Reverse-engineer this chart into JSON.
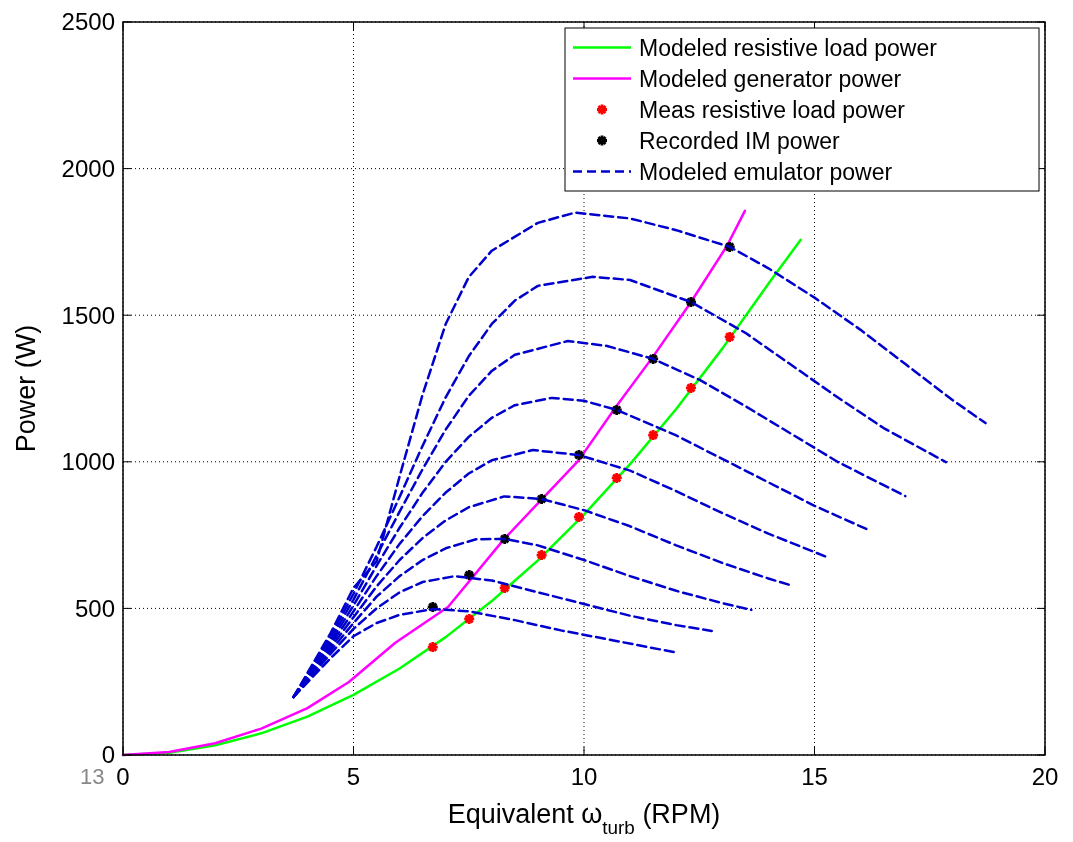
{
  "chart_data": {
    "type": "line",
    "xlabel": "Equivalent ω$_{turb}$ (RPM)",
    "ylabel": "Power (W)",
    "xlim": [
      0,
      20
    ],
    "ylim": [
      0,
      2500
    ],
    "xticks": [
      0,
      5,
      10,
      15,
      20
    ],
    "yticks": [
      0,
      500,
      1000,
      1500,
      2000,
      2500
    ],
    "grid": true,
    "legend": "top right",
    "annotations": [
      "13"
    ],
    "series": [
      {
        "name": "Modeled resistive load power",
        "color": "#00ff00",
        "line_style": "solid",
        "x": [
          0,
          1,
          2,
          3,
          4,
          5,
          6,
          7,
          8,
          9,
          10,
          11,
          12,
          13,
          14,
          14.7
        ],
        "values": [
          0,
          8,
          33,
          74,
          131,
          205,
          295,
          402,
          525,
          664,
          820,
          992,
          1180,
          1386,
          1607,
          1757
        ]
      },
      {
        "name": "Modeled generator power",
        "color": "#ff00ff",
        "line_style": "solid",
        "x": [
          0,
          1,
          2,
          3,
          4,
          4.9,
          5.9,
          7.05,
          8.27,
          9.88,
          10.69,
          11.49,
          12.3,
          13.1,
          13.49
        ],
        "values": [
          0,
          10,
          40,
          90,
          160,
          249,
          382,
          505,
          737,
          1004,
          1187,
          1357,
          1540,
          1736,
          1856
        ]
      },
      {
        "name": "Meas resistive load power",
        "type": "scatter",
        "marker": "cross",
        "color": "#ff0000",
        "x": [
          6.72,
          7.51,
          8.28,
          9.08,
          9.89,
          10.71,
          11.5,
          12.32,
          13.16
        ],
        "values": [
          368,
          464,
          570,
          682,
          812,
          945,
          1091,
          1252,
          1426
        ]
      },
      {
        "name": "Recorded IM power",
        "type": "scatter",
        "marker": "cross",
        "color": "#000000",
        "x": [
          6.72,
          7.51,
          8.28,
          9.08,
          9.89,
          10.71,
          11.5,
          12.32,
          13.16
        ],
        "values": [
          505,
          614,
          737,
          873,
          1023,
          1177,
          1351,
          1545,
          1733
        ]
      },
      {
        "name": "Modeled emulator power",
        "color": "#0000cc",
        "line_style": "dashed",
        "x": [
          3.7,
          4.5,
          5,
          5.5,
          6,
          6.74,
          7.5,
          8.5,
          9.5,
          10.5,
          11.95
        ],
        "values": [
          198,
          330,
          405,
          450,
          478,
          498,
          490,
          460,
          425,
          395,
          351
        ]
      },
      {
        "color": "#0000cc",
        "line_style": "dashed",
        "x": [
          3.7,
          4.5,
          5,
          5.5,
          6,
          6.5,
          7.2,
          8,
          9,
          10,
          11,
          12,
          12.77
        ],
        "values": [
          198,
          345,
          430,
          500,
          555,
          590,
          610,
          595,
          555,
          515,
          475,
          443,
          423
        ]
      },
      {
        "color": "#0000cc",
        "line_style": "dashed",
        "x": [
          3.7,
          4.5,
          5,
          5.5,
          6,
          6.5,
          7,
          7.66,
          8.28,
          9,
          10,
          11,
          12,
          13,
          13.63
        ],
        "values": [
          198,
          355,
          450,
          540,
          610,
          665,
          705,
          736,
          737,
          715,
          665,
          610,
          560,
          518,
          495
        ]
      },
      {
        "color": "#0000cc",
        "line_style": "dashed",
        "x": [
          3.7,
          4.5,
          5,
          5.5,
          6,
          6.5,
          7,
          7.5,
          8.27,
          9.08,
          10,
          11,
          12,
          13,
          14,
          14.46
        ],
        "values": [
          198,
          365,
          470,
          575,
          665,
          740,
          800,
          845,
          882,
          873,
          835,
          780,
          715,
          655,
          602,
          580
        ]
      },
      {
        "color": "#0000cc",
        "line_style": "dashed",
        "x": [
          3.7,
          4.5,
          5,
          5.5,
          6,
          6.5,
          7,
          7.5,
          8,
          8.89,
          9.89,
          11,
          12,
          13,
          14,
          15.32
        ],
        "values": [
          198,
          375,
          490,
          610,
          720,
          815,
          895,
          960,
          1005,
          1040,
          1023,
          970,
          900,
          825,
          755,
          672
        ]
      },
      {
        "color": "#0000cc",
        "line_style": "dashed",
        "x": [
          3.7,
          4.5,
          5,
          5.5,
          6,
          6.5,
          7,
          7.5,
          8,
          8.5,
          9.31,
          10,
          10.71,
          12,
          13,
          14,
          15,
          16.18
        ],
        "values": [
          198,
          385,
          510,
          645,
          775,
          895,
          1000,
          1085,
          1150,
          1193,
          1218,
          1208,
          1177,
          1090,
          1010,
          930,
          850,
          767
        ]
      },
      {
        "color": "#0000cc",
        "line_style": "dashed",
        "x": [
          3.7,
          4.5,
          5,
          5.5,
          6,
          6.5,
          7,
          7.5,
          8,
          8.5,
          9.65,
          10.5,
          11.5,
          12.5,
          13.5,
          14.5,
          15.5,
          16.97
        ],
        "values": [
          198,
          395,
          530,
          680,
          830,
          975,
          1110,
          1225,
          1310,
          1365,
          1412,
          1395,
          1351,
          1280,
          1190,
          1095,
          1000,
          883
        ]
      },
      {
        "color": "#0000cc",
        "line_style": "dashed",
        "x": [
          3.7,
          4.5,
          5,
          5.5,
          6,
          6.5,
          7,
          7.5,
          8,
          8.5,
          9,
          10.19,
          11,
          12.32,
          13.5,
          14.5,
          15.5,
          16.5,
          17.85
        ],
        "values": [
          198,
          405,
          550,
          710,
          880,
          1055,
          1220,
          1360,
          1470,
          1550,
          1600,
          1631,
          1620,
          1545,
          1440,
          1330,
          1220,
          1115,
          999
        ]
      },
      {
        "color": "#0000cc",
        "line_style": "dashed",
        "x": [
          3.7,
          4.5,
          5,
          5.5,
          6,
          6.5,
          7,
          7.5,
          8,
          9,
          9.81,
          11,
          12,
          13.16,
          14,
          15,
          16,
          17,
          18,
          18.71
        ],
        "values": [
          198,
          415,
          570,
          660,
          950,
          1230,
          1470,
          1630,
          1720,
          1815,
          1850,
          1830,
          1790,
          1733,
          1660,
          1560,
          1450,
          1330,
          1210,
          1132
        ]
      }
    ]
  }
}
